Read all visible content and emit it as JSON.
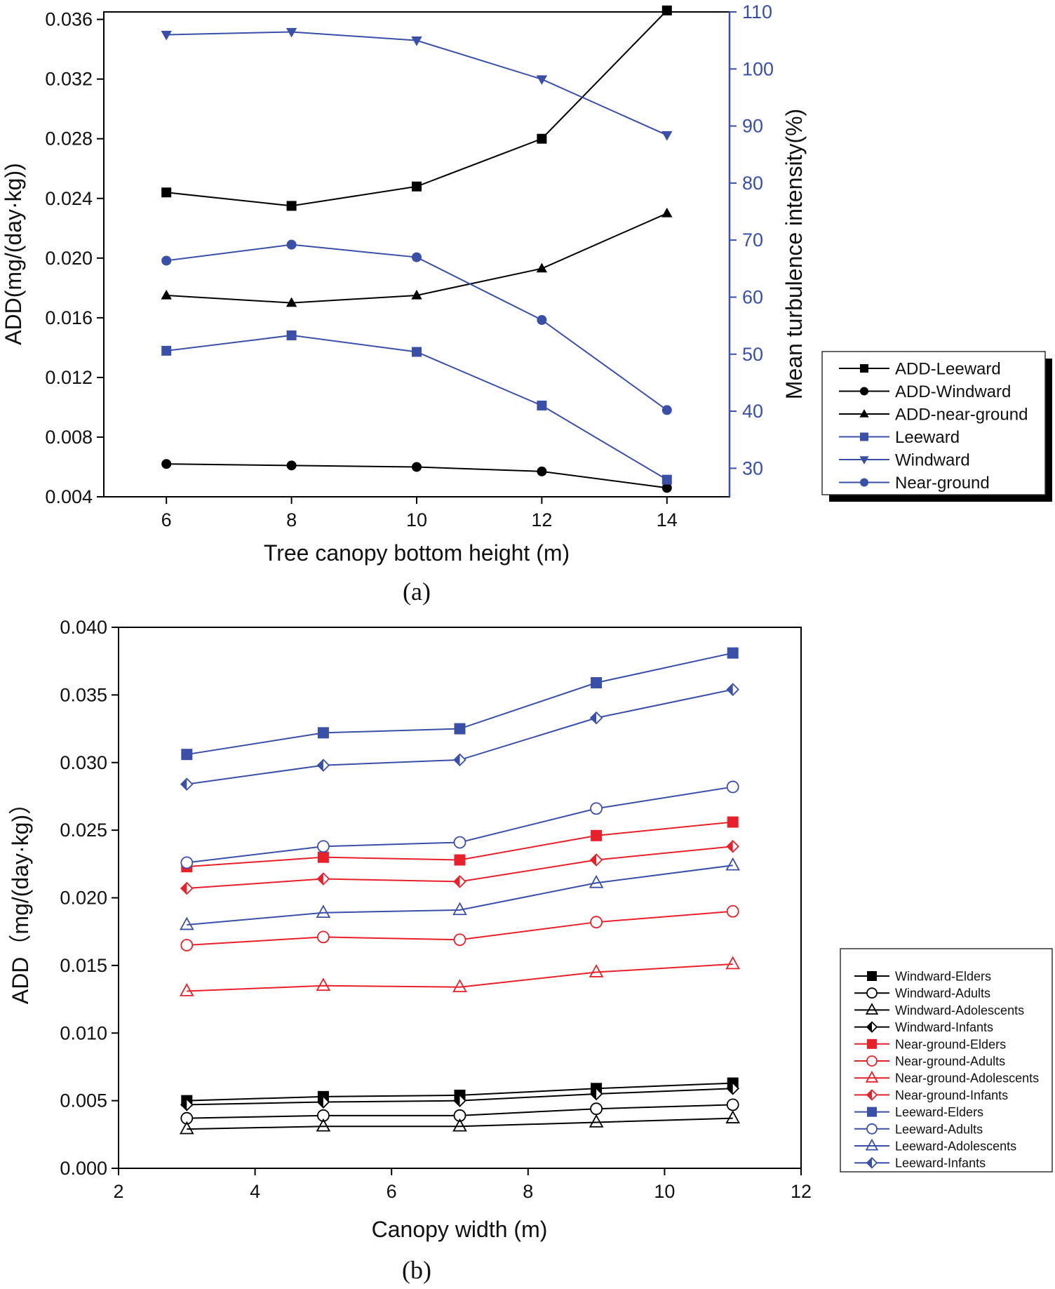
{
  "chart_data": [
    {
      "type": "line",
      "panel_label": "(a)",
      "xlabel": "Tree canopy bottom height (m)",
      "ylabel": "ADD(mg/(day·kg))",
      "y2label": "Mean turbulence intensity(%)",
      "x": [
        6,
        8,
        10,
        12,
        14
      ],
      "xlim": [
        5,
        15
      ],
      "ylim": [
        0.004,
        0.0365
      ],
      "y2lim": [
        25,
        110
      ],
      "xticks": [
        6,
        8,
        10,
        12,
        14
      ],
      "yticks": [
        "0.004",
        "0.008",
        "0.012",
        "0.016",
        "0.020",
        "0.024",
        "0.028",
        "0.032",
        "0.036"
      ],
      "y2ticks": [
        30,
        40,
        50,
        60,
        70,
        80,
        90,
        100,
        110
      ],
      "legend_position": "right, outside plot",
      "series": [
        {
          "name": "ADD-Leeward",
          "axis": "left",
          "color": "#000000",
          "marker": "square",
          "values": [
            0.0244,
            0.0235,
            0.0248,
            0.028,
            0.0366
          ]
        },
        {
          "name": "ADD-Windward",
          "axis": "left",
          "color": "#000000",
          "marker": "circle",
          "values": [
            0.0062,
            0.0061,
            0.006,
            0.0057,
            0.0046
          ]
        },
        {
          "name": "ADD-near-ground",
          "axis": "left",
          "color": "#000000",
          "marker": "triangle-up",
          "values": [
            0.0175,
            0.017,
            0.0175,
            0.0193,
            0.023
          ]
        },
        {
          "name": "Leeward",
          "axis": "right",
          "color": "#3A4FA8",
          "marker": "square",
          "values": [
            50.6,
            53.3,
            50.4,
            41.0,
            28.0
          ]
        },
        {
          "name": "Windward",
          "axis": "right",
          "color": "#3A4FA8",
          "marker": "triangle-down",
          "values": [
            106.0,
            106.5,
            105.0,
            98.2,
            88.4
          ]
        },
        {
          "name": "Near-ground",
          "axis": "right",
          "color": "#3A4FA8",
          "marker": "circle",
          "values": [
            66.4,
            69.2,
            67.0,
            56.0,
            40.2
          ]
        }
      ]
    },
    {
      "type": "line",
      "panel_label": "(b)",
      "xlabel": "Canopy width (m)",
      "ylabel": "ADD（mg/(day·kg)）",
      "x": [
        3,
        5,
        7,
        9,
        11
      ],
      "xlim": [
        2,
        12
      ],
      "ylim": [
        0.0,
        0.04
      ],
      "xticks": [
        2,
        4,
        6,
        8,
        10,
        12
      ],
      "yticks": [
        "0.000",
        "0.005",
        "0.010",
        "0.015",
        "0.020",
        "0.025",
        "0.030",
        "0.035",
        "0.040"
      ],
      "legend_position": "right, outside plot",
      "series": [
        {
          "name": "Windward-Elders",
          "color": "#000000",
          "marker": "square-filled",
          "values": [
            0.005,
            0.0053,
            0.0054,
            0.0059,
            0.0063
          ]
        },
        {
          "name": "Windward-Adults",
          "color": "#000000",
          "marker": "circle-open",
          "values": [
            0.0037,
            0.0039,
            0.0039,
            0.0044,
            0.0047
          ]
        },
        {
          "name": "Windward-Adolescents",
          "color": "#000000",
          "marker": "triangle-open",
          "values": [
            0.0029,
            0.0031,
            0.0031,
            0.0034,
            0.0037
          ]
        },
        {
          "name": "Windward-Infants",
          "color": "#000000",
          "marker": "diamond-half",
          "values": [
            0.0047,
            0.0049,
            0.005,
            0.0055,
            0.0059
          ]
        },
        {
          "name": "Near-ground-Elders",
          "color": "#E8202A",
          "marker": "square-filled",
          "values": [
            0.0223,
            0.023,
            0.0228,
            0.0246,
            0.0256
          ]
        },
        {
          "name": "Near-ground-Adults",
          "color": "#E8202A",
          "marker": "circle-open",
          "values": [
            0.0165,
            0.0171,
            0.0169,
            0.0182,
            0.019
          ]
        },
        {
          "name": "Near-ground-Adolescents",
          "color": "#E8202A",
          "marker": "triangle-open",
          "values": [
            0.0131,
            0.0135,
            0.0134,
            0.0145,
            0.0151
          ]
        },
        {
          "name": "Near-ground-Infants",
          "color": "#E8202A",
          "marker": "diamond-half",
          "values": [
            0.0207,
            0.0214,
            0.0212,
            0.0228,
            0.0238
          ]
        },
        {
          "name": "Leeward-Elders",
          "color": "#3A4FA8",
          "marker": "square-filled",
          "values": [
            0.0306,
            0.0322,
            0.0325,
            0.0359,
            0.0381
          ]
        },
        {
          "name": "Leeward-Adults",
          "color": "#3A4FA8",
          "marker": "circle-open",
          "values": [
            0.0226,
            0.0238,
            0.0241,
            0.0266,
            0.0282
          ]
        },
        {
          "name": "Leeward-Adolescents",
          "color": "#3A4FA8",
          "marker": "triangle-open",
          "values": [
            0.018,
            0.0189,
            0.0191,
            0.0211,
            0.0224
          ]
        },
        {
          "name": "Leeward-Infants",
          "color": "#3A4FA8",
          "marker": "diamond-half",
          "values": [
            0.0284,
            0.0298,
            0.0302,
            0.0333,
            0.0354
          ]
        }
      ]
    }
  ]
}
